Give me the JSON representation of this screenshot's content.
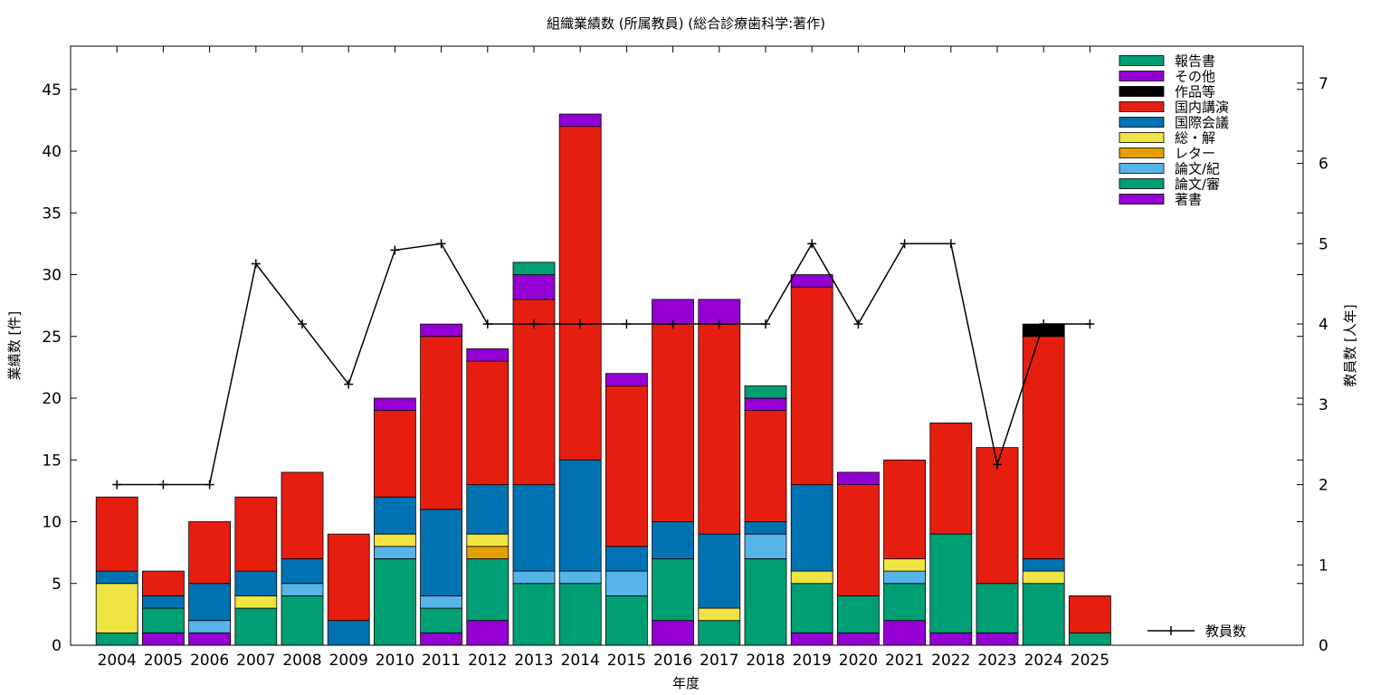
{
  "chart_data": {
    "type": "bar",
    "stacked": true,
    "title": "組織業績数 (所属教員) (総合診療歯科学:著作)",
    "xlabel": "年度",
    "ylabel": "業績数 [件]",
    "y2label": "教員数 [人年]",
    "ylim": [
      0,
      48.5
    ],
    "y2lim": [
      0,
      7.46
    ],
    "yticks": [
      "0",
      "5",
      "10",
      "15",
      "20",
      "25",
      "30",
      "35",
      "40",
      "45"
    ],
    "y2ticks": [
      "0",
      "1",
      "2",
      "3",
      "4",
      "5",
      "6",
      "7"
    ],
    "categories": [
      "2004",
      "2005",
      "2006",
      "2007",
      "2008",
      "2009",
      "2010",
      "2011",
      "2012",
      "2013",
      "2014",
      "2015",
      "2016",
      "2017",
      "2018",
      "2019",
      "2020",
      "2021",
      "2022",
      "2023",
      "2024",
      "2025"
    ],
    "series": [
      {
        "name": "著書",
        "color": "#9400d3",
        "values": [
          0,
          1,
          1,
          0,
          0,
          0,
          0,
          1,
          2,
          0,
          0,
          0,
          2,
          0,
          0,
          1,
          1,
          2,
          1,
          1,
          0,
          0
        ]
      },
      {
        "name": "論文/審",
        "color": "#009e73",
        "values": [
          1,
          2,
          0,
          3,
          4,
          0,
          7,
          2,
          5,
          5,
          5,
          4,
          5,
          2,
          7,
          4,
          3,
          3,
          8,
          4,
          5,
          1
        ]
      },
      {
        "name": "論文/紀",
        "color": "#56b4e9",
        "values": [
          0,
          0,
          1,
          0,
          1,
          0,
          1,
          1,
          0,
          1,
          1,
          2,
          0,
          0,
          2,
          0,
          0,
          1,
          0,
          0,
          0,
          0
        ]
      },
      {
        "name": "レター",
        "color": "#e69f00",
        "values": [
          0,
          0,
          0,
          0,
          0,
          0,
          0,
          0,
          1,
          0,
          0,
          0,
          0,
          0,
          0,
          0,
          0,
          0,
          0,
          0,
          0,
          0
        ]
      },
      {
        "name": "総・解",
        "color": "#f0e442",
        "values": [
          4,
          0,
          0,
          1,
          0,
          0,
          1,
          0,
          1,
          0,
          0,
          0,
          0,
          1,
          0,
          1,
          0,
          1,
          0,
          0,
          1,
          0
        ]
      },
      {
        "name": "国際会議",
        "color": "#0072b2",
        "values": [
          1,
          1,
          3,
          2,
          2,
          2,
          3,
          7,
          4,
          7,
          9,
          2,
          3,
          6,
          1,
          7,
          0,
          0,
          0,
          0,
          1,
          0
        ]
      },
      {
        "name": "国内講演",
        "color": "#e51e10",
        "values": [
          6,
          2,
          5,
          6,
          7,
          7,
          7,
          14,
          10,
          15,
          27,
          13,
          16,
          17,
          9,
          16,
          9,
          8,
          9,
          11,
          18,
          3
        ]
      },
      {
        "name": "作品等",
        "color": "#000000",
        "values": [
          0,
          0,
          0,
          0,
          0,
          0,
          0,
          0,
          0,
          0,
          0,
          0,
          0,
          0,
          0,
          0,
          0,
          0,
          0,
          0,
          1,
          0
        ]
      },
      {
        "name": "その他",
        "color": "#9400d3",
        "values": [
          0,
          0,
          0,
          0,
          0,
          0,
          1,
          1,
          1,
          2,
          1,
          1,
          2,
          2,
          1,
          1,
          1,
          0,
          0,
          0,
          0,
          0
        ]
      },
      {
        "name": "報告書",
        "color": "#009e73",
        "values": [
          0,
          0,
          0,
          0,
          0,
          0,
          0,
          0,
          0,
          1,
          0,
          0,
          0,
          0,
          1,
          0,
          0,
          0,
          0,
          0,
          0,
          0
        ]
      }
    ],
    "legend_order": [
      "報告書",
      "その他",
      "作品等",
      "国内講演",
      "国際会議",
      "総・解",
      "レター",
      "論文/紀",
      "論文/審",
      "著書"
    ],
    "legend_position": "top-right",
    "line": {
      "name": "教員数",
      "axis": "right",
      "color": "#000000",
      "values": [
        2,
        2,
        2,
        4.75,
        4,
        3.25,
        4.92,
        5,
        4,
        4,
        4,
        4,
        4,
        4,
        4,
        5,
        4,
        5,
        5,
        2.25,
        4,
        4
      ]
    }
  }
}
